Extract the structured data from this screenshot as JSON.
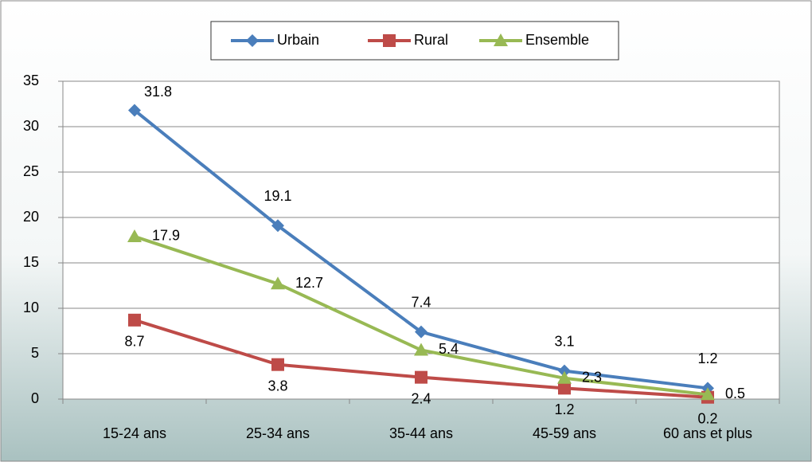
{
  "chart_data": {
    "type": "line",
    "categories": [
      "15-24 ans",
      "25-34 ans",
      "35-44 ans",
      "45-59 ans",
      "60 ans et plus"
    ],
    "series": [
      {
        "name": "Urbain",
        "color": "#4a7ebb",
        "marker": "diamond",
        "values": [
          31.8,
          19.1,
          7.4,
          3.1,
          1.2
        ]
      },
      {
        "name": "Rural",
        "color": "#be4b48",
        "marker": "square",
        "values": [
          8.7,
          3.8,
          2.4,
          1.2,
          0.2
        ]
      },
      {
        "name": "Ensemble",
        "color": "#98b954",
        "marker": "triangle",
        "values": [
          17.9,
          12.7,
          5.4,
          2.3,
          0.5
        ]
      }
    ],
    "ylim": [
      0,
      35
    ],
    "yticks": [
      0,
      5,
      10,
      15,
      20,
      25,
      30,
      35
    ],
    "grid": true,
    "legend": "top"
  }
}
